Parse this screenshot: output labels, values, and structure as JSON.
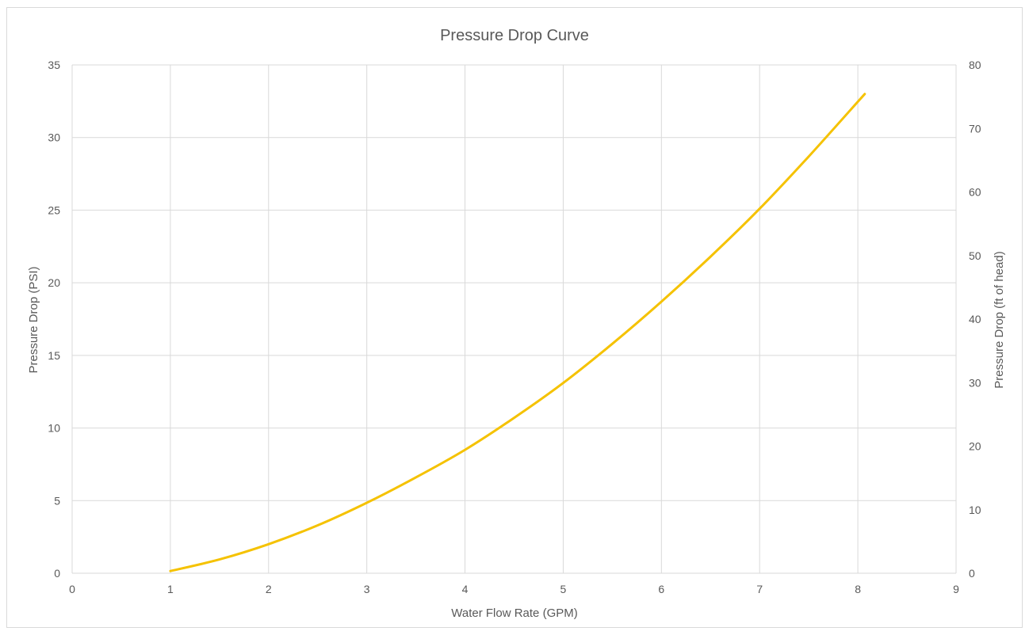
{
  "chart_data": {
    "type": "line",
    "title": "Pressure Drop Curve",
    "xlabel": "Water Flow Rate (GPM)",
    "ylabel": "Pressure Drop (PSI)",
    "y2label": "Pressure Drop (ft of head)",
    "xlim": [
      0,
      9
    ],
    "ylim": [
      0,
      35
    ],
    "y2lim": [
      0,
      80
    ],
    "x_ticks": [
      0,
      1,
      2,
      3,
      4,
      5,
      6,
      7,
      8,
      9
    ],
    "y_ticks": [
      0,
      5,
      10,
      15,
      20,
      25,
      30,
      35
    ],
    "y2_ticks": [
      0,
      10,
      20,
      30,
      40,
      50,
      60,
      70,
      80
    ],
    "grid": true,
    "legend": "none",
    "series": [
      {
        "color": "#f5c200",
        "x": [
          1.0,
          1.5,
          2.0,
          2.5,
          3.0,
          3.5,
          4.0,
          4.5,
          5.0,
          5.5,
          6.0,
          6.5,
          7.0,
          7.5,
          8.07
        ],
        "y": [
          0.15,
          0.95,
          2.0,
          3.3,
          4.85,
          6.6,
          8.5,
          10.7,
          13.1,
          15.8,
          18.7,
          21.8,
          25.1,
          28.7,
          33.0
        ]
      }
    ]
  }
}
